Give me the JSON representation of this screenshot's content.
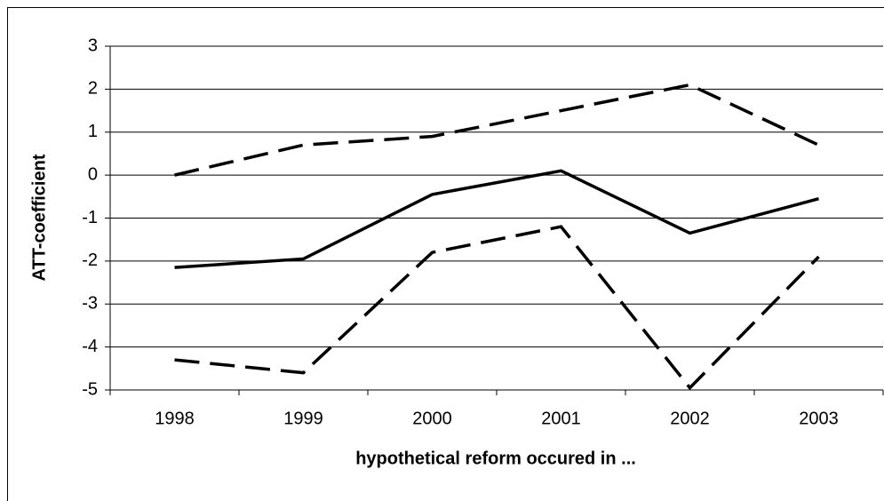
{
  "chart_data": {
    "type": "line",
    "x_label": "hypothetical reform occured in ...",
    "y_label": "ATT-coefficient",
    "categories": [
      "1998",
      "1999",
      "2000",
      "2001",
      "2002",
      "2003"
    ],
    "series": [
      {
        "color": "#000000",
        "dashed": true,
        "values": [
          0,
          0.7,
          0.9,
          1.5,
          2.1,
          0.7
        ]
      },
      {
        "color": "#000000",
        "dashed": false,
        "values": [
          -2.15,
          -1.95,
          -0.45,
          0.1,
          -1.35,
          -0.55
        ]
      },
      {
        "color": "#000000",
        "dashed": true,
        "values": [
          -4.3,
          -4.6,
          -1.8,
          -1.2,
          -4.95,
          -1.9
        ]
      }
    ],
    "ylim": [
      -5,
      3
    ],
    "yticks": [
      -5,
      -4,
      -3,
      -2,
      -1,
      0,
      1,
      2,
      3
    ],
    "grid": true
  }
}
